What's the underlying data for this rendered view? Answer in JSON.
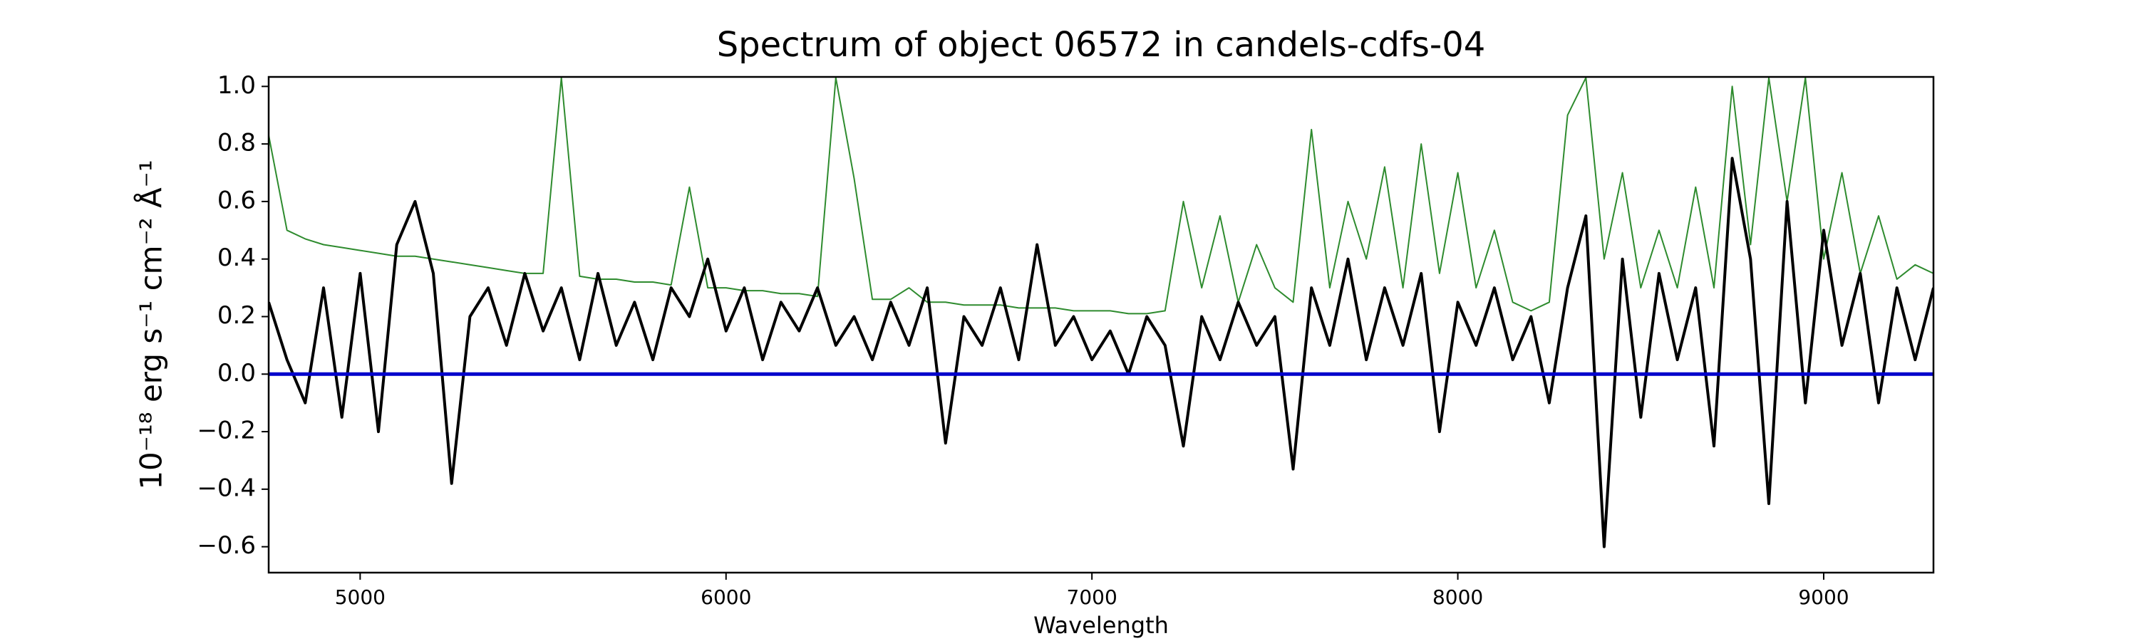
{
  "chart_data": {
    "type": "line",
    "title": "Spectrum of object 06572 in candels-cdfs-04",
    "xlabel": "Wavelength",
    "ylabel": "10⁻¹⁸ erg s⁻¹ cm⁻² Å⁻¹",
    "xlim": [
      4750,
      9300
    ],
    "ylim": [
      -0.69,
      1.033
    ],
    "xticks": [
      5000,
      6000,
      7000,
      8000,
      9000
    ],
    "yticks": [
      {
        "value": -0.6,
        "label": "−0.6"
      },
      {
        "value": -0.4,
        "label": "−0.4"
      },
      {
        "value": -0.2,
        "label": "−0.2"
      },
      {
        "value": 0,
        "label": "0.0"
      },
      0.2,
      0.4,
      0.6,
      0.8,
      {
        "value": 1,
        "label": "1.0"
      }
    ],
    "grid": false,
    "x": [
      4750,
      4800,
      4850,
      4900,
      4950,
      5000,
      5050,
      5100,
      5150,
      5200,
      5250,
      5300,
      5350,
      5400,
      5450,
      5500,
      5550,
      5600,
      5650,
      5700,
      5750,
      5800,
      5850,
      5900,
      5950,
      6000,
      6050,
      6100,
      6150,
      6200,
      6250,
      6300,
      6350,
      6400,
      6450,
      6500,
      6550,
      6600,
      6650,
      6700,
      6750,
      6800,
      6850,
      6900,
      6950,
      7000,
      7050,
      7100,
      7150,
      7200,
      7250,
      7300,
      7350,
      7400,
      7450,
      7500,
      7550,
      7600,
      7650,
      7700,
      7750,
      7800,
      7850,
      7900,
      7950,
      8000,
      8050,
      8100,
      8150,
      8200,
      8250,
      8300,
      8350,
      8400,
      8450,
      8500,
      8550,
      8600,
      8650,
      8700,
      8750,
      8800,
      8850,
      8900,
      8950,
      9000,
      9050,
      9100,
      9150,
      9200,
      9250,
      9300
    ],
    "series": [
      {
        "color": "#2e8b2e",
        "width": 2,
        "values": [
          0.83,
          0.5,
          0.47,
          0.45,
          0.44,
          0.43,
          0.42,
          0.41,
          0.41,
          0.4,
          0.39,
          0.38,
          0.37,
          0.36,
          0.35,
          0.35,
          1.03,
          0.34,
          0.33,
          0.33,
          0.32,
          0.32,
          0.31,
          0.65,
          0.3,
          0.3,
          0.29,
          0.29,
          0.28,
          0.28,
          0.27,
          1.03,
          0.68,
          0.26,
          0.26,
          0.3,
          0.25,
          0.25,
          0.24,
          0.24,
          0.24,
          0.23,
          0.23,
          0.23,
          0.22,
          0.22,
          0.22,
          0.21,
          0.21,
          0.22,
          0.6,
          0.3,
          0.55,
          0.25,
          0.45,
          0.3,
          0.25,
          0.85,
          0.3,
          0.6,
          0.4,
          0.72,
          0.3,
          0.8,
          0.35,
          0.7,
          0.3,
          0.5,
          0.25,
          0.22,
          0.25,
          0.9,
          1.03,
          0.4,
          0.7,
          0.3,
          0.5,
          0.3,
          0.65,
          0.3,
          1.0,
          0.45,
          1.03,
          0.6,
          1.03,
          0.4,
          0.7,
          0.35,
          0.55,
          0.33,
          0.38,
          0.35
        ]
      },
      {
        "color": "#000000",
        "width": 4,
        "values": [
          0.25,
          0.05,
          -0.1,
          0.3,
          -0.15,
          0.35,
          -0.2,
          0.45,
          0.6,
          0.35,
          -0.38,
          0.2,
          0.3,
          0.1,
          0.35,
          0.15,
          0.3,
          0.05,
          0.35,
          0.1,
          0.25,
          0.05,
          0.3,
          0.2,
          0.4,
          0.15,
          0.3,
          0.05,
          0.25,
          0.15,
          0.3,
          0.1,
          0.2,
          0.05,
          0.25,
          0.1,
          0.3,
          -0.24,
          0.2,
          0.1,
          0.3,
          0.05,
          0.45,
          0.1,
          0.2,
          0.05,
          0.15,
          0.0,
          0.2,
          0.1,
          -0.25,
          0.2,
          0.05,
          0.25,
          0.1,
          0.2,
          -0.33,
          0.3,
          0.1,
          0.4,
          0.05,
          0.3,
          0.1,
          0.35,
          -0.2,
          0.25,
          0.1,
          0.3,
          0.05,
          0.2,
          -0.1,
          0.3,
          0.55,
          -0.6,
          0.4,
          -0.15,
          0.35,
          0.05,
          0.3,
          -0.25,
          0.75,
          0.4,
          -0.45,
          0.6,
          -0.1,
          0.5,
          0.1,
          0.35,
          -0.1,
          0.3,
          0.05,
          0.3
        ]
      },
      {
        "color": "#0000cc",
        "width": 5,
        "x": [
          4750,
          9300
        ],
        "values": [
          0,
          0
        ]
      }
    ]
  }
}
